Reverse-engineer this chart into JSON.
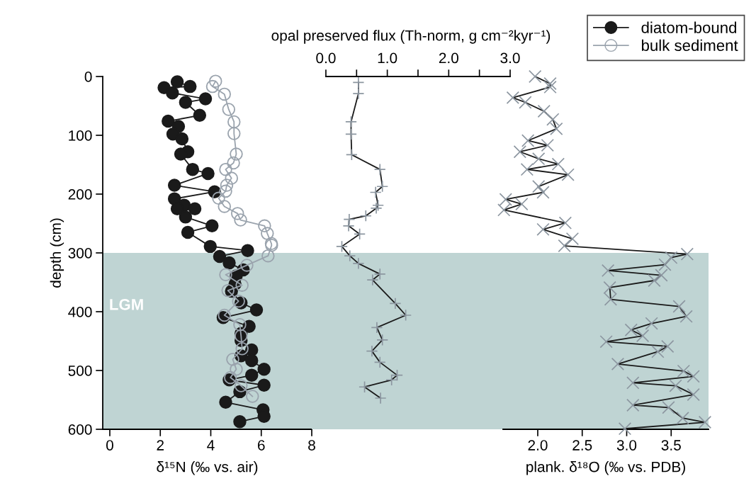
{
  "chart_data": [
    {
      "type": "line",
      "xlabel": "δ¹⁵N (‰ vs. air)",
      "ylabel": "depth (cm)",
      "xlim": [
        -0.28,
        8
      ],
      "xticks": [
        0,
        2,
        4,
        6,
        8
      ],
      "ylim": [
        600,
        0
      ],
      "yticks": [
        0,
        100,
        200,
        300,
        400,
        500,
        600
      ],
      "legend": "top right",
      "marker": "circle",
      "grid": false,
      "bands": [
        {
          "axis": "y",
          "from": 300,
          "to": 600,
          "label": "LGM",
          "color": "#bfd4d3"
        }
      ],
      "series": [
        {
          "name": "diatom-bound",
          "color": "#1a1a1a",
          "x": [
            2.67,
            3.18,
            2.15,
            2.48,
            3.79,
            3.0,
            3.56,
            2.31,
            2.72,
            2.5,
            2.86,
            3.09,
            2.81,
            3.28,
            3.89,
            2.56,
            4.15,
            2.56,
            2.95,
            2.67,
            3.37,
            3.0,
            4.05,
            3.09,
            3.98,
            5.46,
            4.35,
            4.73,
            5.29,
            5.01,
            4.96,
            4.82,
            5.2,
            5.81,
            4.49,
            5.52,
            5.2,
            5.2,
            5.62,
            5.2,
            5.62,
            6.11,
            5.62,
            4.73,
            6.11,
            5.15,
            4.59,
            6.07,
            6.11,
            5.15
          ],
          "values": [
            9,
            17,
            19,
            28,
            38,
            44,
            66,
            76,
            85,
            98,
            106,
            128,
            132,
            158,
            165,
            185,
            196,
            208,
            219,
            225,
            225,
            239,
            254,
            265,
            289,
            296,
            306,
            317,
            329,
            339,
            353,
            365,
            385,
            397,
            410,
            425,
            437,
            449,
            465,
            475,
            483,
            498,
            508,
            516,
            525,
            536,
            554,
            567,
            578,
            587
          ]
        },
        {
          "name": "bulk sediment",
          "color": "#9aa3ad",
          "x": [
            4.19,
            4.07,
            4.54,
            4.71,
            4.92,
            4.92,
            5.01,
            4.9,
            4.59,
            4.82,
            4.63,
            4.59,
            4.31,
            4.54,
            5.06,
            5.18,
            6.13,
            6.24,
            6.4,
            6.41,
            6.27,
            5.43,
            4.59,
            5.24,
            4.68,
            5.1,
            4.54,
            5.15,
            5.2,
            5.24,
            4.87,
            5.01,
            4.78,
            5.2,
            5.65
          ],
          "values": [
            8,
            17,
            30,
            56,
            77,
            97,
            132,
            147,
            158,
            173,
            185,
            195,
            207,
            221,
            233,
            244,
            254,
            267,
            284,
            287,
            305,
            321,
            337,
            355,
            364,
            382,
            406,
            422,
            441,
            463,
            481,
            498,
            512,
            526,
            544
          ]
        }
      ]
    },
    {
      "type": "line",
      "xlabel": "opal preserved flux (Th-norm, g cm⁻²kyr⁻¹)",
      "xlim": [
        -0.23,
        3.0
      ],
      "xticks": [
        {
          "value": 0,
          "label": "0.0"
        },
        {
          "value": 0.5,
          "label": null
        },
        {
          "value": 1,
          "label": "1.0"
        },
        {
          "value": 1.5,
          "label": null
        },
        {
          "value": 2,
          "label": "2.0"
        },
        {
          "value": 2.5,
          "label": null
        },
        {
          "value": 3,
          "label": "3.0"
        }
      ],
      "ylim": [
        600,
        0
      ],
      "tick_labels": "x",
      "marker": "plus",
      "grid": false,
      "bands": [
        {
          "axis": "y",
          "from": 300,
          "to": 600,
          "color": "#bfd4d3"
        }
      ],
      "series": [
        {
          "color": "#1a1a1a",
          "x": [
            0.53,
            0.53,
            0.41,
            0.41,
            0.42,
            0.88,
            0.92,
            0.81,
            0.85,
            0.82,
            0.65,
            0.38,
            0.37,
            0.55,
            0.26,
            0.39,
            0.53,
            0.88,
            0.76,
            1.13,
            1.3,
            0.83,
            0.92,
            0.75,
            0.88,
            1.16,
            1.07,
            0.63,
            0.89
          ],
          "values": [
            10,
            29,
            77,
            98,
            133,
            158,
            187,
            197,
            219,
            224,
            237,
            243,
            254,
            268,
            289,
            305,
            318,
            336,
            346,
            386,
            406,
            427,
            448,
            467,
            486,
            508,
            516,
            528,
            547
          ]
        }
      ]
    },
    {
      "type": "line",
      "xlabel": "plank. δ¹⁸O (‰ vs. PDB)",
      "xlim": [
        1.61,
        3.92
      ],
      "xticks": [
        {
          "value": 2,
          "label": "2.0"
        },
        {
          "value": 2.5,
          "label": "2.5"
        },
        {
          "value": 3,
          "label": "3.0"
        },
        {
          "value": 3.5,
          "label": "3.5"
        }
      ],
      "ylim": [
        600,
        0
      ],
      "tick_labels": "x",
      "marker": "cross",
      "grid": false,
      "bands": [
        {
          "axis": "y",
          "from": 300,
          "to": 600,
          "color": "#bfd4d3"
        }
      ],
      "series": [
        {
          "color": "#1a1a1a",
          "x": [
            1.97,
            2.14,
            2.14,
            1.72,
            1.86,
            2.07,
            2.17,
            2.21,
            1.89,
            2.11,
            1.8,
            2.01,
            2.23,
            1.88,
            2.34,
            2.01,
            2.06,
            1.64,
            1.82,
            1.62,
            2.31,
            2.06,
            2.39,
            2.3,
            3.68,
            3.5,
            3.43,
            2.79,
            3.39,
            3.31,
            2.81,
            2.82,
            3.59,
            3.67,
            3.28,
            3.05,
            3.18,
            2.77,
            3.46,
            3.35,
            2.9,
            3.64,
            3.75,
            3.07,
            3.55,
            3.75,
            3.07,
            3.47,
            3.63,
            3.88,
            2.98
          ],
          "values": [
            0,
            12,
            18,
            36,
            44,
            59,
            73,
            89,
            109,
            117,
            128,
            140,
            149,
            158,
            167,
            187,
            197,
            209,
            217,
            227,
            249,
            260,
            276,
            288,
            302,
            308,
            320,
            330,
            338,
            347,
            359,
            379,
            391,
            408,
            420,
            431,
            441,
            451,
            459,
            468,
            489,
            501,
            510,
            521,
            526,
            541,
            559,
            563,
            581,
            588,
            599
          ]
        }
      ]
    }
  ]
}
